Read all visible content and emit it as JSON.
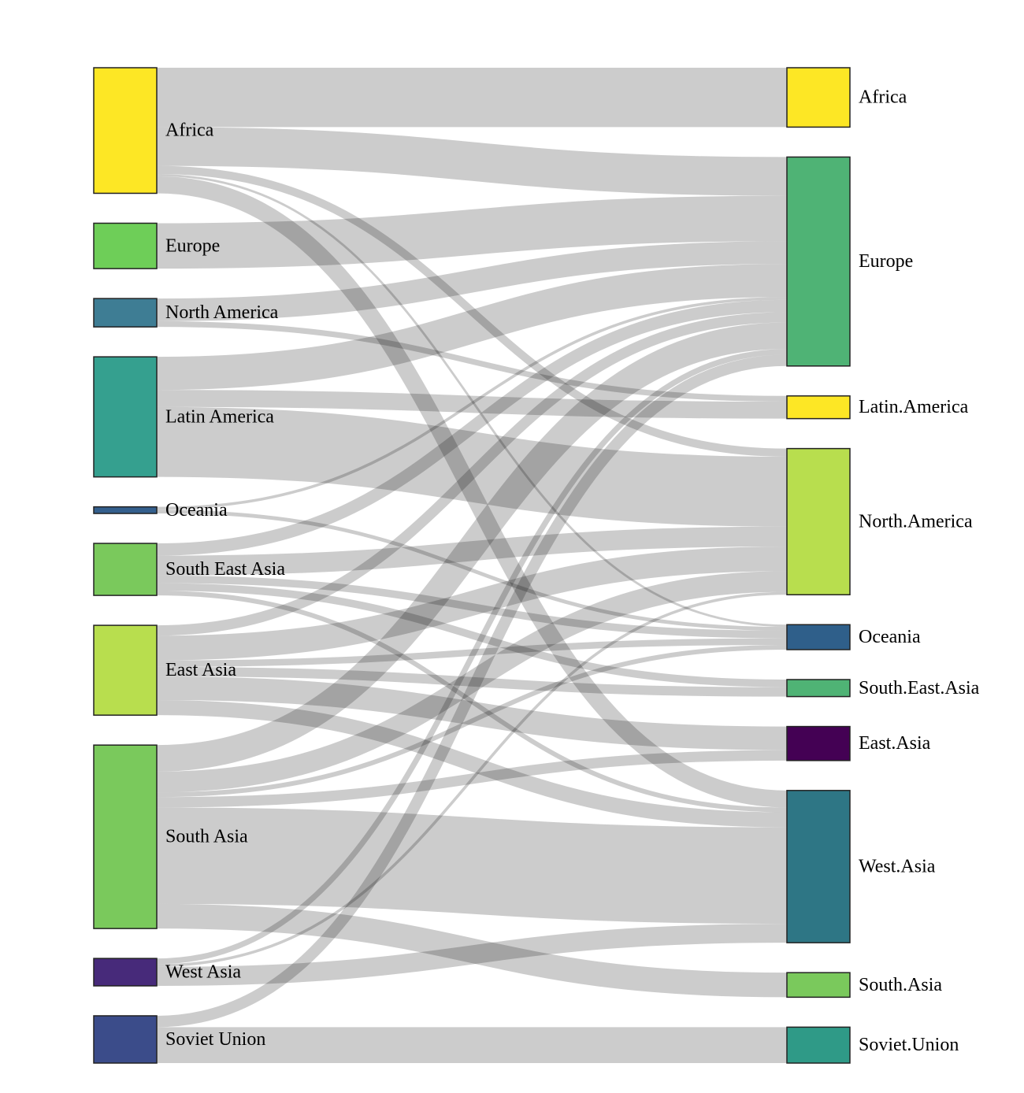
{
  "chart_data": {
    "type": "sankey",
    "title": "",
    "sources": [
      {
        "id": "Africa",
        "label": "Africa",
        "color": "#fde725"
      },
      {
        "id": "Europe",
        "label": "Europe",
        "color": "#6ece58"
      },
      {
        "id": "North America",
        "label": "North America",
        "color": "#3e7d94"
      },
      {
        "id": "Latin America",
        "label": "Latin America",
        "color": "#35a08f"
      },
      {
        "id": "Oceania",
        "label": "Oceania",
        "color": "#345f8d"
      },
      {
        "id": "South East Asia",
        "label": "South East Asia",
        "color": "#7ac95c"
      },
      {
        "id": "East Asia",
        "label": "East Asia",
        "color": "#b8de4e"
      },
      {
        "id": "South Asia",
        "label": "South Asia",
        "color": "#7ac95c"
      },
      {
        "id": "West Asia",
        "label": "West Asia",
        "color": "#472a7a"
      },
      {
        "id": "Soviet Union",
        "label": "Soviet Union",
        "color": "#3b4c8a"
      }
    ],
    "targets": [
      {
        "id": "Africa.t",
        "label": "Africa",
        "color": "#fde725"
      },
      {
        "id": "Europe.t",
        "label": "Europe",
        "color": "#4fb375"
      },
      {
        "id": "Latin.America",
        "label": "Latin.America",
        "color": "#fde725"
      },
      {
        "id": "North.America",
        "label": "North.America",
        "color": "#b8de4e"
      },
      {
        "id": "Oceania.t",
        "label": "Oceania",
        "color": "#2f5f8a"
      },
      {
        "id": "South.East.Asia",
        "label": "South.East.Asia",
        "color": "#4fb375"
      },
      {
        "id": "East.Asia",
        "label": "East.Asia",
        "color": "#440154"
      },
      {
        "id": "West.Asia",
        "label": "West.Asia",
        "color": "#2e7685"
      },
      {
        "id": "South.Asia",
        "label": "South.Asia",
        "color": "#7ac95c"
      },
      {
        "id": "Soviet.Union",
        "label": "Soviet.Union",
        "color": "#2f9a87"
      }
    ],
    "links": [
      {
        "source": "Africa",
        "target": "Africa.t",
        "value": 3.14
      },
      {
        "source": "Africa",
        "target": "Europe.t",
        "value": 2.05
      },
      {
        "source": "Africa",
        "target": "North.America",
        "value": 0.43
      },
      {
        "source": "Africa",
        "target": "Oceania.t",
        "value": 0.12
      },
      {
        "source": "Africa",
        "target": "West.Asia",
        "value": 0.9
      },
      {
        "source": "Europe",
        "target": "Europe.t",
        "value": 2.4
      },
      {
        "source": "North America",
        "target": "Europe.t",
        "value": 1.2
      },
      {
        "source": "North America",
        "target": "Latin.America",
        "value": 0.3
      },
      {
        "source": "Latin America",
        "target": "Europe.t",
        "value": 1.75
      },
      {
        "source": "Latin America",
        "target": "Latin.America",
        "value": 0.9
      },
      {
        "source": "Latin America",
        "target": "North.America",
        "value": 3.7
      },
      {
        "source": "Oceania",
        "target": "Europe.t",
        "value": 0.15
      },
      {
        "source": "Oceania",
        "target": "Oceania.t",
        "value": 0.2
      },
      {
        "source": "South East Asia",
        "target": "Europe.t",
        "value": 0.65
      },
      {
        "source": "South East Asia",
        "target": "North.America",
        "value": 1.05
      },
      {
        "source": "South East Asia",
        "target": "Oceania.t",
        "value": 0.4
      },
      {
        "source": "South East Asia",
        "target": "South.East.Asia",
        "value": 0.4
      },
      {
        "source": "South East Asia",
        "target": "West.Asia",
        "value": 0.25
      },
      {
        "source": "East Asia",
        "target": "Europe.t",
        "value": 0.55
      },
      {
        "source": "East Asia",
        "target": "North.America",
        "value": 1.3
      },
      {
        "source": "East Asia",
        "target": "Oceania.t",
        "value": 0.35
      },
      {
        "source": "East Asia",
        "target": "South.East.Asia",
        "value": 0.5
      },
      {
        "source": "East Asia",
        "target": "East.Asia",
        "value": 1.25
      },
      {
        "source": "East Asia",
        "target": "West.Asia",
        "value": 0.8
      },
      {
        "source": "South Asia",
        "target": "Europe.t",
        "value": 1.4
      },
      {
        "source": "South Asia",
        "target": "North.America",
        "value": 1.1
      },
      {
        "source": "South Asia",
        "target": "Oceania.t",
        "value": 0.25
      },
      {
        "source": "South Asia",
        "target": "East.Asia",
        "value": 0.55
      },
      {
        "source": "South Asia",
        "target": "West.Asia",
        "value": 5.1
      },
      {
        "source": "South Asia",
        "target": "South.Asia",
        "value": 1.3
      },
      {
        "source": "West Asia",
        "target": "Europe.t",
        "value": 0.3
      },
      {
        "source": "West Asia",
        "target": "North.America",
        "value": 0.15
      },
      {
        "source": "West Asia",
        "target": "West.Asia",
        "value": 1.0
      },
      {
        "source": "Soviet Union",
        "target": "Europe.t",
        "value": 0.6
      },
      {
        "source": "Soviet Union",
        "target": "Soviet.Union",
        "value": 1.9
      }
    ]
  }
}
